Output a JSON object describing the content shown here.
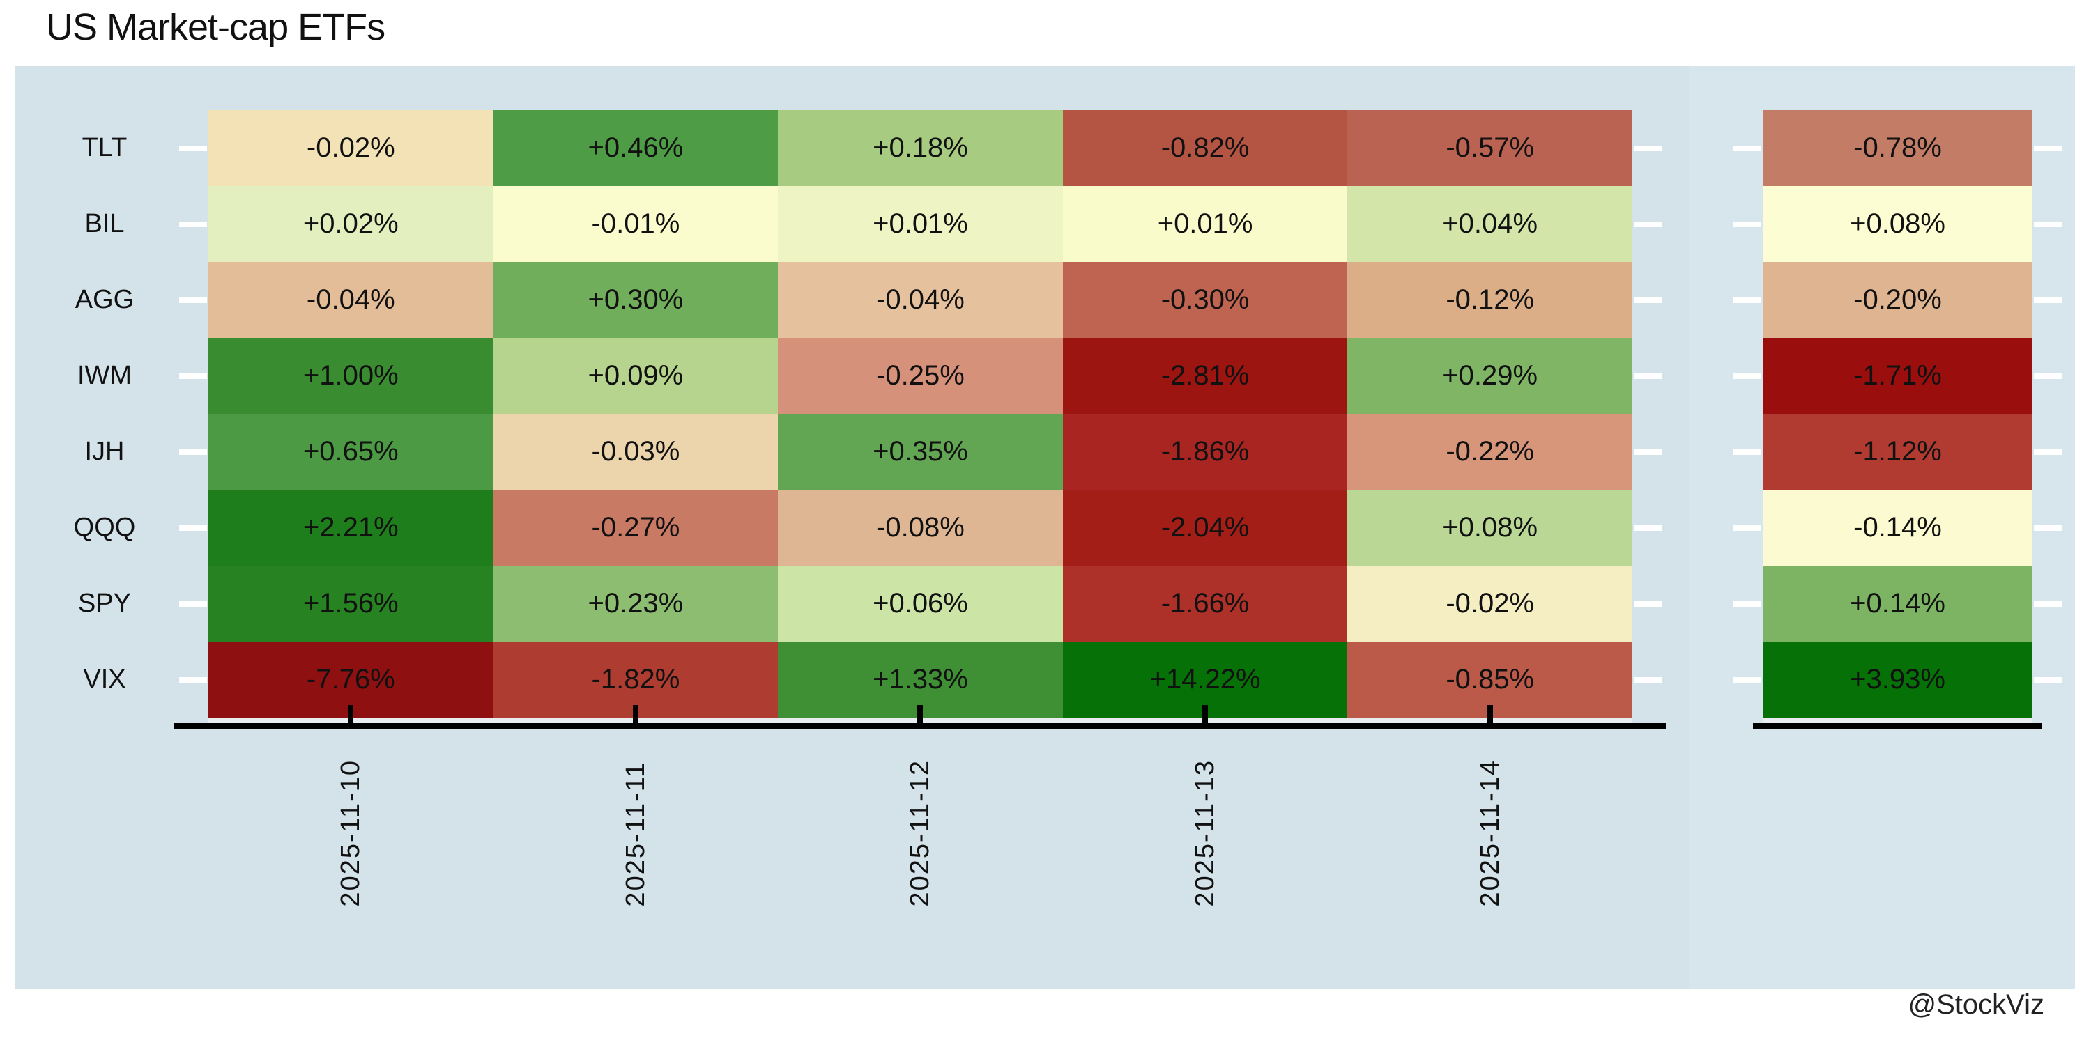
{
  "title": "US Market-cap ETFs",
  "watermark": "@StockViz",
  "colors": {
    "page_bg": "#ffffff",
    "panel_bg_main": "#d4e2e9",
    "panel_bg_right": "#d7e5ec",
    "axis": "#000000",
    "row_tick": "#ffffff",
    "text": "#111111",
    "cell_gap_strip": "#e9edef"
  },
  "chart_data": {
    "type": "heatmap",
    "title": "US Market-cap ETFs",
    "unit": "%",
    "colormap": "RdYlGn",
    "legend": "none",
    "rows": [
      "TLT",
      "BIL",
      "AGG",
      "IWM",
      "IJH",
      "QQQ",
      "SPY",
      "VIX"
    ],
    "columns": [
      "2025-11-10",
      "2025-11-11",
      "2025-11-12",
      "2025-11-13",
      "2025-11-14"
    ],
    "values": [
      [
        -0.02,
        0.46,
        0.18,
        -0.82,
        -0.57
      ],
      [
        0.02,
        -0.01,
        0.01,
        0.01,
        0.04
      ],
      [
        -0.04,
        0.3,
        -0.04,
        -0.3,
        -0.12
      ],
      [
        1.0,
        0.09,
        -0.25,
        -2.81,
        0.29
      ],
      [
        0.65,
        -0.03,
        0.35,
        -1.86,
        -0.22
      ],
      [
        2.21,
        -0.27,
        -0.08,
        -2.04,
        0.08
      ],
      [
        1.56,
        0.23,
        0.06,
        -1.66,
        -0.02
      ],
      [
        -7.76,
        -1.82,
        1.33,
        14.22,
        -0.85
      ]
    ],
    "cell_labels": [
      [
        "-0.02%",
        "+0.46%",
        "+0.18%",
        "-0.82%",
        "-0.57%"
      ],
      [
        "+0.02%",
        "-0.01%",
        "+0.01%",
        "+0.01%",
        "+0.04%"
      ],
      [
        "-0.04%",
        "+0.30%",
        "-0.04%",
        "-0.30%",
        "-0.12%"
      ],
      [
        "+1.00%",
        "+0.09%",
        "-0.25%",
        "-2.81%",
        "+0.29%"
      ],
      [
        "+0.65%",
        "-0.03%",
        "+0.35%",
        "-1.86%",
        "-0.22%"
      ],
      [
        "+2.21%",
        "-0.27%",
        "-0.08%",
        "-2.04%",
        "+0.08%"
      ],
      [
        "+1.56%",
        "+0.23%",
        "+0.06%",
        "-1.66%",
        "-0.02%"
      ],
      [
        "-7.76%",
        "-1.82%",
        "+1.33%",
        "+14.22%",
        "-0.85%"
      ]
    ],
    "cell_colors": [
      [
        "#f2e2b5",
        "#4f9c47",
        "#a7cb80",
        "#b45443",
        "#bb6352"
      ],
      [
        "#e4efbf",
        "#fbfccd",
        "#eef4c3",
        "#fafbca",
        "#d3e5a8"
      ],
      [
        "#e2bd97",
        "#71ae5b",
        "#e5c29d",
        "#bf6450",
        "#dcae88"
      ],
      [
        "#3a8c30",
        "#b6d48e",
        "#d6917a",
        "#9c1511",
        "#80b566"
      ],
      [
        "#4d9a44",
        "#ecd5ac",
        "#62a653",
        "#a82521",
        "#d79579"
      ],
      [
        "#1d7e1b",
        "#c87a64",
        "#dfb694",
        "#a41e18",
        "#bad795"
      ],
      [
        "#278221",
        "#8dbd71",
        "#cce4a6",
        "#ad3128",
        "#f5eec3"
      ],
      [
        "#8e1010",
        "#ae3c30",
        "#3f8f35",
        "#067106",
        "#bc5a4a"
      ]
    ],
    "summary_values": [
      -0.78,
      0.08,
      -0.2,
      -1.71,
      -1.12,
      -0.14,
      0.14,
      3.93
    ],
    "summary_labels": [
      "-0.78%",
      "+0.08%",
      "-0.20%",
      "-1.71%",
      "-1.12%",
      "-0.14%",
      "+0.14%",
      "+3.93%"
    ],
    "summary_colors": [
      "#c37c65",
      "#fdfdd3",
      "#dfb591",
      "#9a0e0e",
      "#b23b31",
      "#fbfad0",
      "#7db464",
      "#067106"
    ]
  }
}
